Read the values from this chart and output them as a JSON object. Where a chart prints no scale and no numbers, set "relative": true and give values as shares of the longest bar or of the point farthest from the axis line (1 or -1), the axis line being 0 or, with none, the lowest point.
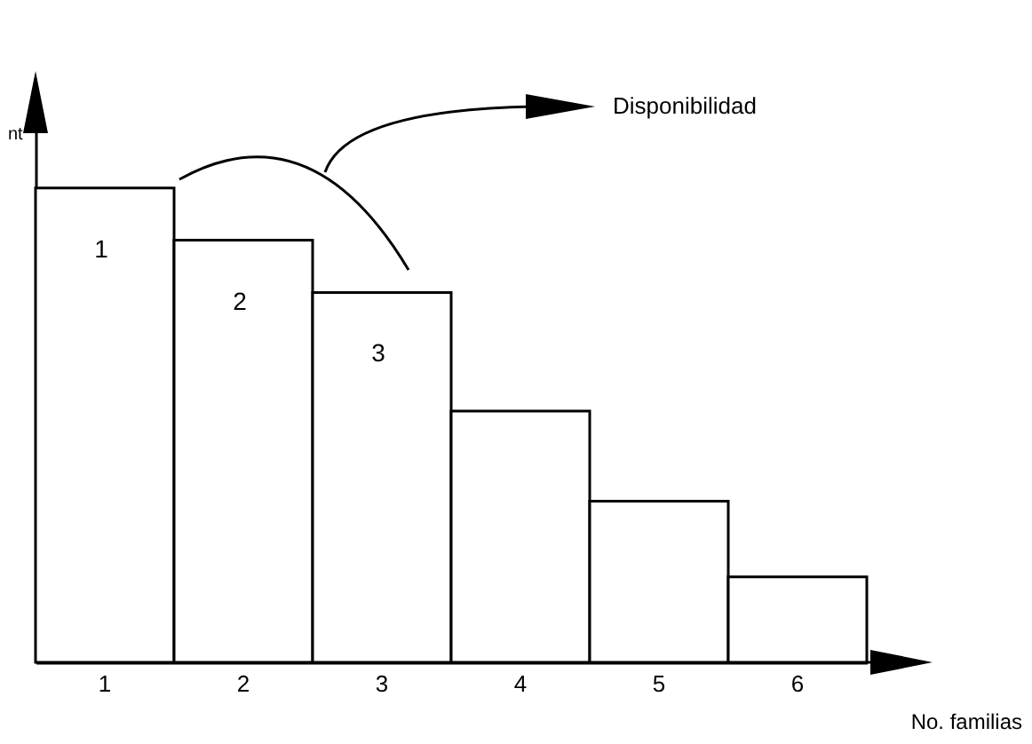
{
  "chart_data": {
    "type": "bar",
    "relative": true,
    "xlabel": "No. familias",
    "ylabel": "nt",
    "categories": [
      "1",
      "2",
      "3",
      "4",
      "5",
      "6"
    ],
    "values": [
      1,
      0.89,
      0.78,
      0.53,
      0.34,
      0.18
    ],
    "color": "#ffffff",
    "grid": false,
    "annotations": [
      "1",
      "2",
      "3",
      "Disponibilidad"
    ]
  }
}
